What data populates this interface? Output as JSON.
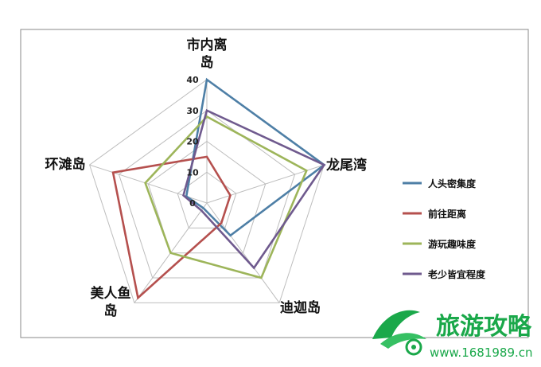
{
  "chart_data": {
    "type": "radar",
    "axes": [
      "市内离岛",
      "龙尾湾",
      "迪迦岛",
      "美人鱼岛",
      "环滩岛"
    ],
    "axis_label_lines": [
      [
        "市内离",
        "岛"
      ],
      [
        "龙尾湾"
      ],
      [
        "迪迦岛"
      ],
      [
        "美人鱼",
        "岛"
      ],
      [
        "环滩岛"
      ]
    ],
    "ticks": [
      0,
      10,
      20,
      30,
      40
    ],
    "range": [
      0,
      40
    ],
    "grid": true,
    "legend_position": "right",
    "series": [
      {
        "name": "人头密集度",
        "color": "#4e7fa6",
        "values": [
          40,
          40,
          13,
          2,
          7
        ]
      },
      {
        "name": "前往距离",
        "color": "#b5504e",
        "values": [
          15,
          8,
          8,
          38,
          32
        ]
      },
      {
        "name": "游玩趣味度",
        "color": "#9db55a",
        "values": [
          28,
          34,
          30,
          20,
          21
        ]
      },
      {
        "name": "老少皆宜程度",
        "color": "#6f5a8e",
        "values": [
          30,
          40,
          26,
          3,
          8
        ]
      }
    ]
  },
  "watermark": {
    "title": "旅游攻略",
    "url": "www.1681989.cn",
    "logo_color": "#1aa84a"
  }
}
